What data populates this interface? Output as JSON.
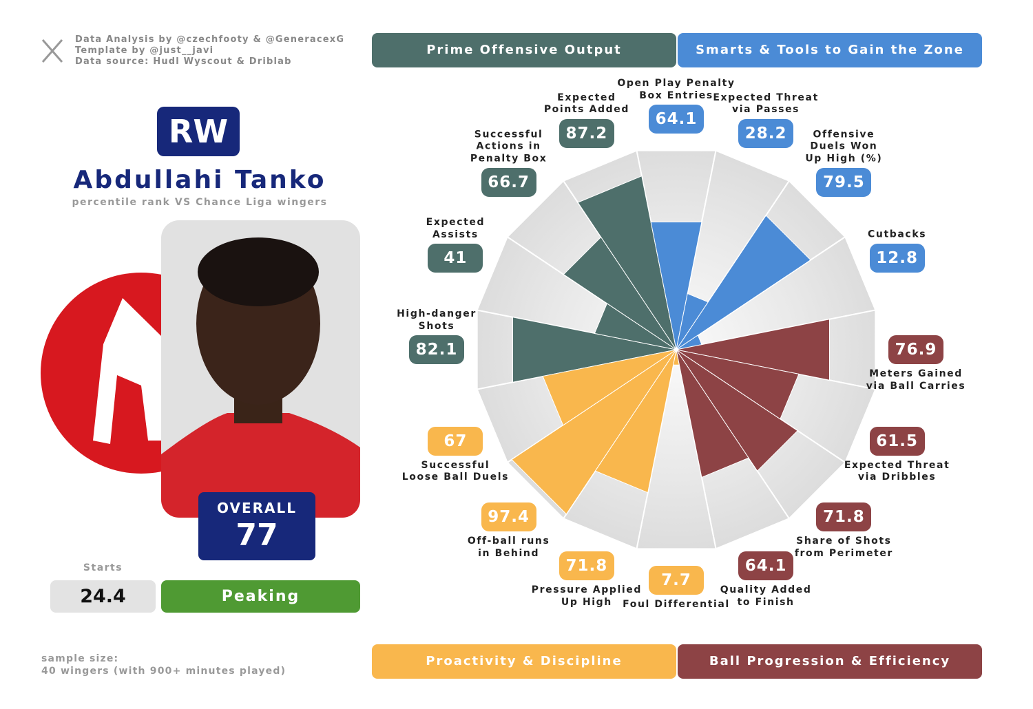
{
  "header": {
    "credits": [
      "Data Analysis by @czechfooty & @GeneracexG",
      "Template by @just__javi",
      "Data source: Hudl Wyscout & Driblab"
    ]
  },
  "player": {
    "position": "RW",
    "name": "Abdullahi Tanko",
    "subtitle": "percentile rank VS Chance Liga wingers",
    "overall_label": "OVERALL",
    "overall": 77,
    "starts_label": "Starts",
    "starts": 24.4,
    "status": "Peaking"
  },
  "footer": {
    "sample_size": [
      "sample size:",
      "40 wingers (with 900+ minutes played)"
    ]
  },
  "chart_data": {
    "type": "polar_bar",
    "rlim": [
      0,
      100
    ],
    "categories": [
      "Open Play Penalty\nBox Entries",
      "Expected Threat\nvia Passes",
      "Offensive\nDuels Won\nUp High (%)",
      "Cutbacks",
      "Meters Gained\nvia Ball Carries",
      "Expected Threat\nvia Dribbles",
      "Share of Shots\nfrom Perimeter",
      "Quality Added\nto Finish",
      "Foul Differential",
      "Pressure Applied\nUp High",
      "Off-ball runs\nin Behind",
      "Successful\nLoose Ball Duels",
      "High-danger\nShots",
      "Expected\nAssists",
      "Successful\nActions in\nPenalty Box",
      "Expected\nPoints Added"
    ],
    "series": [
      {
        "name": "Prime Offensive Output",
        "color": "#4e6f6b",
        "values": [
          null,
          null,
          null,
          null,
          null,
          null,
          null,
          null,
          null,
          null,
          null,
          null,
          82.1,
          41,
          66.7,
          87.2
        ]
      },
      {
        "name": "Smarts & Tools to Gain the Zone",
        "color": "#4b8bd6",
        "values": [
          64.1,
          28.2,
          79.5,
          12.8,
          null,
          null,
          null,
          null,
          null,
          null,
          null,
          null,
          null,
          null,
          null,
          null
        ]
      },
      {
        "name": "Proactivity & Discipline",
        "color": "#f9b74d",
        "values": [
          null,
          null,
          null,
          null,
          null,
          null,
          null,
          null,
          7.7,
          71.8,
          97.4,
          67,
          null,
          null,
          null,
          null
        ]
      },
      {
        "name": "Ball Progression & Efficiency",
        "color": "#8d4345",
        "values": [
          null,
          null,
          null,
          null,
          76.9,
          61.5,
          71.8,
          64.1,
          null,
          null,
          null,
          null,
          null,
          null,
          null,
          null
        ]
      }
    ]
  }
}
